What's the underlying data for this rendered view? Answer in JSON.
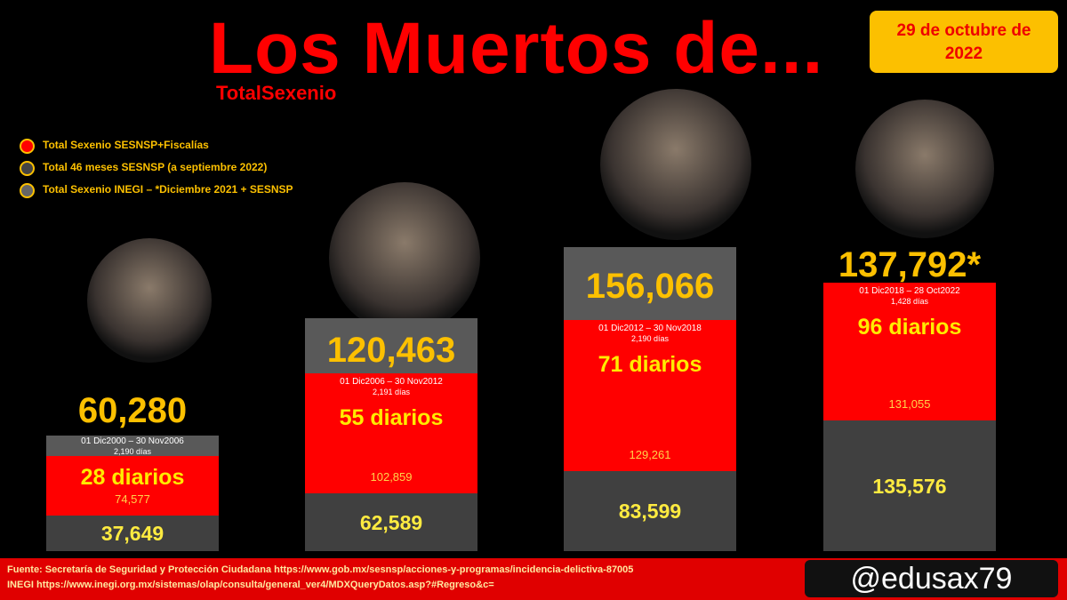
{
  "header": {
    "title": "Los Muertos de...",
    "subtitle": "TotalSexenio",
    "date": "29 de octubre de 2022"
  },
  "legend": [
    "Total Sexenio SESNSP+Fiscalías",
    "Total 46 meses SESNSP (a septiembre 2022)",
    "Total Sexenio INEGI – *Diciembre 2021 + SESNSP"
  ],
  "columns": [
    {
      "total": "60,280",
      "date_range": "01 Dic2000 – 30 Nov2006",
      "days": "2,190 días",
      "daily": "28 diarios",
      "red_value": "74,577",
      "gray_value": "37,649"
    },
    {
      "total": "120,463",
      "date_range": "01 Dic2006 – 30 Nov2012",
      "days": "2,191 días",
      "daily": "55 diarios",
      "red_value": "102,859",
      "gray_value": "62,589"
    },
    {
      "total": "156,066",
      "date_range": "01 Dic2012 – 30 Nov2018",
      "days": "2,190 días",
      "daily": "71 diarios",
      "red_value": "129,261",
      "gray_value": "83,599"
    },
    {
      "total": "137,792*",
      "date_range": "01 Dic2018 – 28 Oct2022",
      "days": "1,428 días",
      "daily": "96 diarios",
      "red_value": "131,055",
      "gray_value": "135,576"
    }
  ],
  "footer": {
    "sources": [
      "Fuente: Secretaría de Seguridad y Protección Ciudadana https://www.gob.mx/sesnsp/acciones-y-programas/incidencia-delictiva-87005",
      "INEGI https://www.inegi.org.mx/sistemas/olap/consulta/general_ver4/MDXQueryDatos.asp?#Regreso&c="
    ],
    "handle": "@edusax79"
  }
}
